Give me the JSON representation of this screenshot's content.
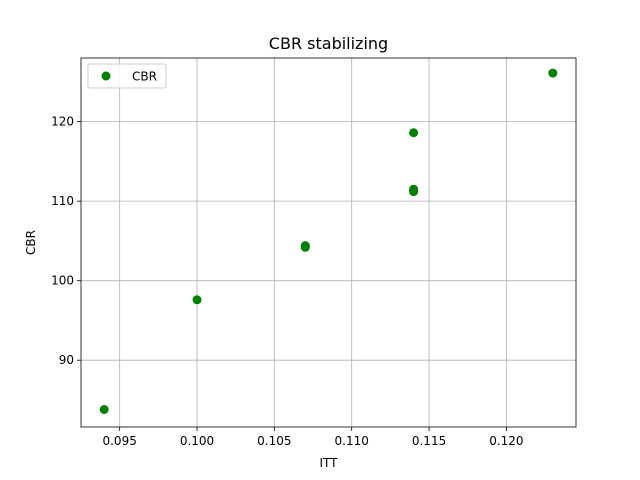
{
  "chart_data": {
    "type": "scatter",
    "title": "CBR stabilizing",
    "xlabel": "ITT",
    "ylabel": "CBR",
    "xlim": [
      0.0925,
      0.1245
    ],
    "ylim": [
      81.6,
      128.0
    ],
    "x_ticks": [
      0.095,
      0.1,
      0.105,
      0.11,
      0.115,
      0.12
    ],
    "x_tick_labels": [
      "0.095",
      "0.100",
      "0.105",
      "0.110",
      "0.115",
      "0.120"
    ],
    "y_ticks": [
      90,
      100,
      110,
      120
    ],
    "y_tick_labels": [
      "90",
      "100",
      "110",
      "120"
    ],
    "grid": true,
    "legend_position": "upper-left",
    "series": [
      {
        "name": "CBR",
        "color": "#008000",
        "marker": "circle",
        "x": [
          0.094,
          0.1,
          0.107,
          0.107,
          0.107,
          0.114,
          0.114,
          0.114,
          0.114,
          0.123
        ],
        "y": [
          83.8,
          97.6,
          104.2,
          104.3,
          104.4,
          111.2,
          111.4,
          111.5,
          118.6,
          126.1
        ]
      }
    ]
  }
}
